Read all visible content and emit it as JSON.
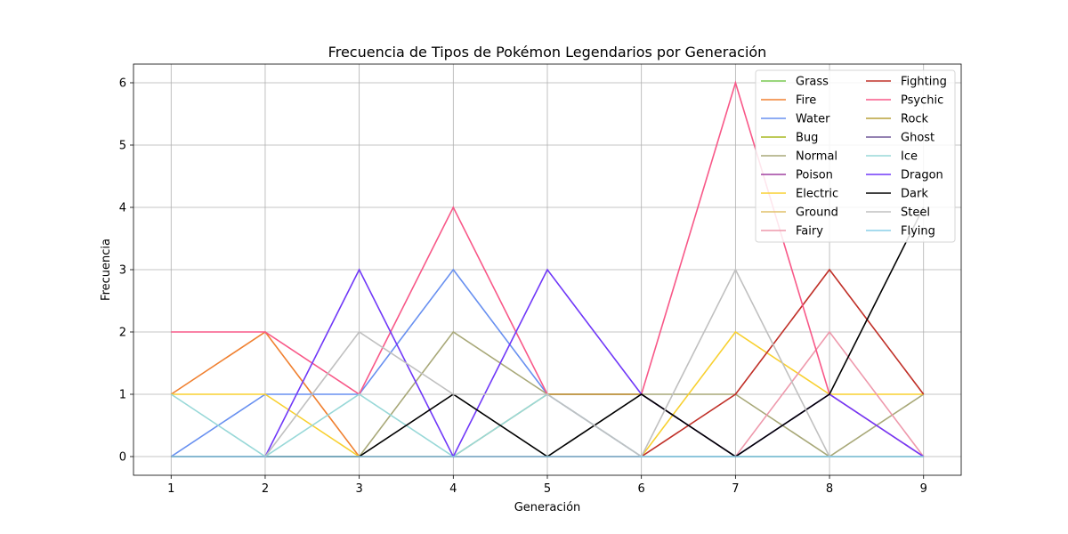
{
  "chart_data": {
    "type": "line",
    "title": "Frecuencia de Tipos de Pokémon Legendarios por Generación",
    "xlabel": "Generación",
    "ylabel": "Frecuencia",
    "x": [
      1,
      2,
      3,
      4,
      5,
      6,
      7,
      8,
      9
    ],
    "xlim": [
      0.6,
      9.4
    ],
    "ylim": [
      -0.3,
      6.3
    ],
    "yticks": [
      0,
      1,
      2,
      3,
      4,
      5,
      6
    ],
    "grid": true,
    "legend_position": "top-right",
    "legend_columns": 2,
    "series": [
      {
        "name": "Grass",
        "color": "#78c850",
        "values": [
          0,
          0,
          0,
          0,
          0,
          0,
          0,
          0,
          0
        ]
      },
      {
        "name": "Fire",
        "color": "#f08030",
        "values": [
          1,
          2,
          0,
          0,
          0,
          0,
          0,
          0,
          0
        ]
      },
      {
        "name": "Water",
        "color": "#6890f0",
        "values": [
          0,
          1,
          1,
          3,
          1,
          0,
          0,
          0,
          0
        ]
      },
      {
        "name": "Bug",
        "color": "#a8b820",
        "values": [
          0,
          0,
          0,
          0,
          0,
          0,
          0,
          0,
          0
        ]
      },
      {
        "name": "Normal",
        "color": "#a8a878",
        "values": [
          0,
          0,
          0,
          2,
          1,
          1,
          1,
          0,
          1
        ]
      },
      {
        "name": "Poison",
        "color": "#a040a0",
        "values": [
          0,
          0,
          0,
          0,
          0,
          0,
          0,
          0,
          0
        ]
      },
      {
        "name": "Electric",
        "color": "#f8d030",
        "values": [
          1,
          1,
          0,
          0,
          0,
          0,
          2,
          1,
          1
        ]
      },
      {
        "name": "Ground",
        "color": "#e0c068",
        "values": [
          0,
          0,
          0,
          0,
          0,
          0,
          0,
          0,
          0
        ]
      },
      {
        "name": "Fairy",
        "color": "#ee99ac",
        "values": [
          0,
          0,
          0,
          0,
          0,
          0,
          0,
          2,
          0
        ]
      },
      {
        "name": "Fighting",
        "color": "#c03028",
        "values": [
          0,
          0,
          0,
          0,
          0,
          0,
          1,
          3,
          1
        ]
      },
      {
        "name": "Psychic",
        "color": "#f85888",
        "values": [
          2,
          2,
          1,
          4,
          1,
          1,
          6,
          1,
          0
        ]
      },
      {
        "name": "Rock",
        "color": "#b8a038",
        "values": [
          0,
          0,
          0,
          0,
          1,
          1,
          0,
          0,
          0
        ]
      },
      {
        "name": "Ghost",
        "color": "#705898",
        "values": [
          0,
          0,
          0,
          0,
          0,
          0,
          0,
          0,
          0
        ]
      },
      {
        "name": "Ice",
        "color": "#98d8d8",
        "values": [
          1,
          0,
          1,
          0,
          1,
          0,
          0,
          0,
          0
        ]
      },
      {
        "name": "Dragon",
        "color": "#7038f8",
        "values": [
          0,
          0,
          3,
          0,
          3,
          1,
          0,
          1,
          0
        ]
      },
      {
        "name": "Dark",
        "color": "#000000",
        "values": [
          0,
          0,
          0,
          1,
          0,
          1,
          0,
          1,
          4
        ]
      },
      {
        "name": "Steel",
        "color": "#c0c0c0",
        "values": [
          0,
          0,
          2,
          1,
          1,
          0,
          3,
          0,
          0
        ]
      },
      {
        "name": "Flying",
        "color": "#89cfe8",
        "values": [
          0,
          0,
          0,
          0,
          0,
          0,
          0,
          0,
          0
        ]
      }
    ]
  }
}
